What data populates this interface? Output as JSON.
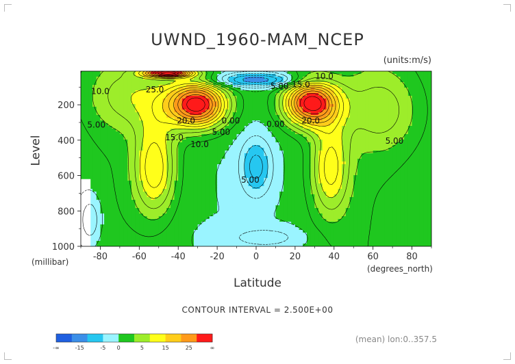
{
  "chart_data": {
    "type": "heatmap",
    "title": "UWND_1960-MAM_NCEP",
    "units_label": "(units:m/s)",
    "xlabel": "Latitude",
    "ylabel": "Level",
    "x_unit_label": "(degrees_north)",
    "y_unit_label": "(millibar)",
    "xlim": [
      -90,
      90
    ],
    "ylim": [
      1000,
      10
    ],
    "y_reversed": true,
    "x_ticks": [
      -80,
      -60,
      -40,
      -20,
      0,
      20,
      40,
      60,
      80
    ],
    "y_ticks": [
      200,
      400,
      600,
      800,
      1000
    ],
    "contour_interval_label": "CONTOUR INTERVAL = 2.500E+00",
    "mean_label": "(mean) lon:0..357.5",
    "colorbar": {
      "colors": [
        "#1f5fe0",
        "#3b8fe8",
        "#26c7f0",
        "#9af4ff",
        "#1fc71f",
        "#9ded2a",
        "#ffff1a",
        "#ffcd1a",
        "#ff9a1a",
        "#ff1a1a"
      ],
      "tick_labels": [
        "-∞",
        "-15",
        "-5",
        "0",
        "5",
        "15",
        "25",
        "∞"
      ]
    },
    "contour_labels": [
      {
        "text": "10.0",
        "lat": -80,
        "p": 140
      },
      {
        "text": "5.00",
        "lat": -82,
        "p": 330
      },
      {
        "text": "25.0",
        "lat": -52,
        "p": 130
      },
      {
        "text": "20.0",
        "lat": -36,
        "p": 305
      },
      {
        "text": "15.0",
        "lat": -42,
        "p": 400
      },
      {
        "text": "10.0",
        "lat": -29,
        "p": 440
      },
      {
        "text": "5.00",
        "lat": -18,
        "p": 370
      },
      {
        "text": "0.00",
        "lat": -13,
        "p": 305
      },
      {
        "text": "5.00",
        "lat": -3,
        "p": 640
      },
      {
        "text": "0.00",
        "lat": 10,
        "p": 325
      },
      {
        "text": "5.00",
        "lat": 12,
        "p": 110
      },
      {
        "text": "15.0",
        "lat": 23,
        "p": 100
      },
      {
        "text": "10.0",
        "lat": 35,
        "p": 55
      },
      {
        "text": "20.0",
        "lat": 28,
        "p": 305
      },
      {
        "text": "5.00",
        "lat": 71,
        "p": 420
      }
    ]
  }
}
